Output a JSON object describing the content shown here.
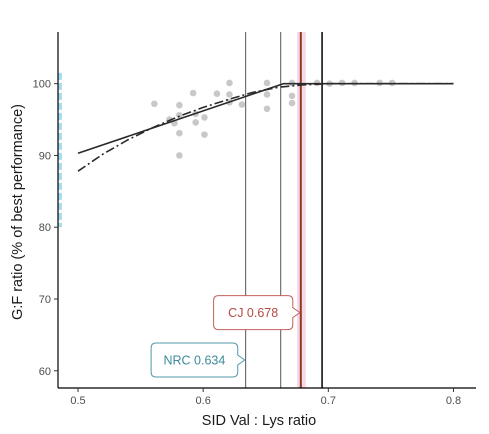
{
  "chart_data": {
    "type": "scatter",
    "title": "",
    "xlabel": "SID Val : Lys ratio",
    "ylabel": "G:F ratio (% of best performance)",
    "xlim": [
      0.484,
      0.818
    ],
    "ylim": [
      57.6,
      107.2
    ],
    "x_ticks": [
      0.5,
      0.6,
      0.7,
      0.8
    ],
    "x_tick_labels": [
      "0.5",
      "0.6",
      "0.7",
      "0.8"
    ],
    "y_ticks": [
      60,
      70,
      80,
      90,
      100
    ],
    "y_tick_labels": [
      "60",
      "70",
      "80",
      "90",
      "100"
    ],
    "grid": false,
    "points": [
      {
        "x": 0.561,
        "y": 97.2
      },
      {
        "x": 0.573,
        "y": 95.0
      },
      {
        "x": 0.577,
        "y": 94.5
      },
      {
        "x": 0.581,
        "y": 97.0
      },
      {
        "x": 0.581,
        "y": 95.6
      },
      {
        "x": 0.581,
        "y": 93.1
      },
      {
        "x": 0.581,
        "y": 90.0
      },
      {
        "x": 0.592,
        "y": 98.7
      },
      {
        "x": 0.594,
        "y": 95.8
      },
      {
        "x": 0.594,
        "y": 94.6
      },
      {
        "x": 0.601,
        "y": 95.3
      },
      {
        "x": 0.601,
        "y": 92.9
      },
      {
        "x": 0.611,
        "y": 98.6
      },
      {
        "x": 0.621,
        "y": 100.1
      },
      {
        "x": 0.621,
        "y": 98.5
      },
      {
        "x": 0.621,
        "y": 97.4
      },
      {
        "x": 0.631,
        "y": 97.1
      },
      {
        "x": 0.651,
        "y": 100.1
      },
      {
        "x": 0.651,
        "y": 98.5
      },
      {
        "x": 0.651,
        "y": 96.5
      },
      {
        "x": 0.671,
        "y": 100.1
      },
      {
        "x": 0.671,
        "y": 98.3
      },
      {
        "x": 0.671,
        "y": 97.3
      },
      {
        "x": 0.691,
        "y": 100.1
      },
      {
        "x": 0.701,
        "y": 100.0
      },
      {
        "x": 0.711,
        "y": 100.1
      },
      {
        "x": 0.721,
        "y": 100.1
      },
      {
        "x": 0.741,
        "y": 100.1
      },
      {
        "x": 0.751,
        "y": 100.1
      }
    ],
    "series": [
      {
        "style": "solid",
        "x": [
          0.5,
          0.664,
          0.8
        ],
        "y": [
          90.3,
          100.0,
          100.0
        ]
      },
      {
        "style": "dashdot",
        "x": [
          0.5,
          0.52,
          0.54,
          0.56,
          0.58,
          0.6,
          0.62,
          0.64,
          0.66,
          0.68,
          0.7,
          0.8
        ],
        "y": [
          87.8,
          90.2,
          92.2,
          93.9,
          95.4,
          96.7,
          97.8,
          98.8,
          99.5,
          99.85,
          100.0,
          100.0
        ]
      }
    ],
    "vlines": [
      {
        "x": 0.634,
        "color": "#2b2b2b",
        "width": 0.8
      },
      {
        "x": 0.662,
        "color": "#2b2b2b",
        "width": 0.8
      },
      {
        "x": 0.695,
        "color": "#000000",
        "width": 1.5
      }
    ],
    "band": {
      "x0": 0.675,
      "x1": 0.682,
      "color": "#f8d7ea"
    },
    "band_line": {
      "x": 0.678,
      "color": "#8b3a1e"
    },
    "callouts": [
      {
        "text": "CJ 0.678",
        "color": "#b54a46",
        "border": "#c2605c",
        "x": 0.678,
        "y": 68.1
      },
      {
        "text": "NRC 0.634",
        "color": "#3f8a9a",
        "border": "#4f9aaa",
        "x": 0.634,
        "y": 61.5
      }
    ],
    "left_edge": {
      "y0": 80,
      "y1": 101.5,
      "color": "#a9def1"
    }
  }
}
